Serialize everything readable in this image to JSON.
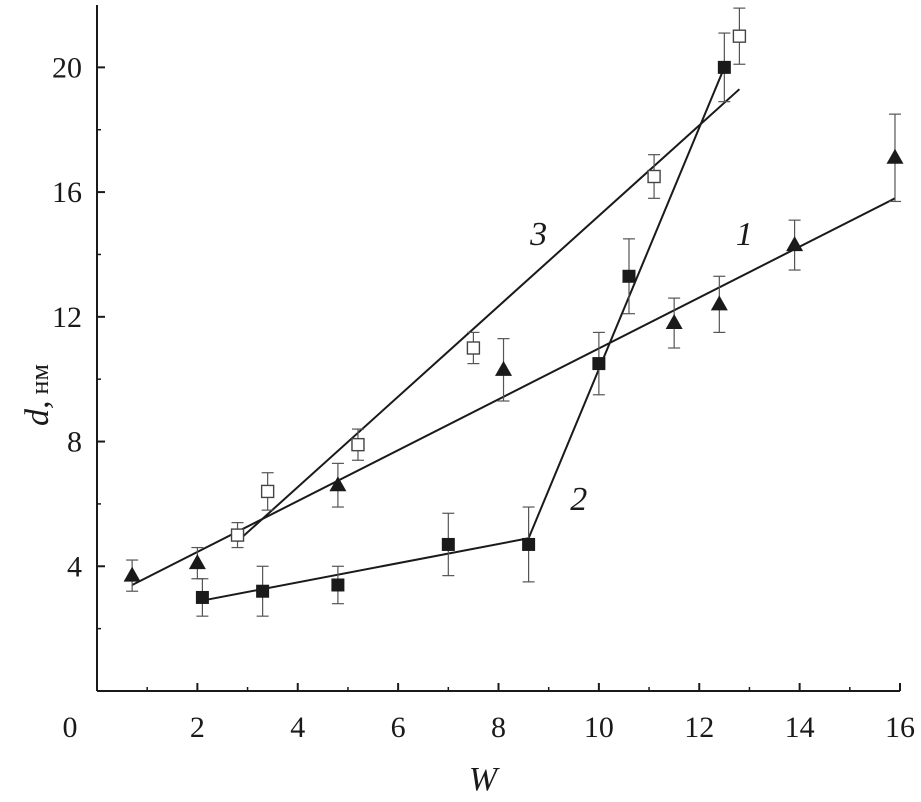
{
  "chart_data": {
    "type": "scatter",
    "xlabel": "W",
    "ylabel": "d,",
    "ylabel_unit": "нм",
    "xlim": [
      0,
      16
    ],
    "ylim": [
      0,
      22
    ],
    "x_ticks": [
      0,
      2,
      4,
      6,
      8,
      10,
      12,
      14,
      16
    ],
    "y_ticks": [
      4,
      8,
      12,
      16,
      20
    ],
    "grid": false,
    "series": [
      {
        "label": "1",
        "marker": "filled-triangle",
        "points": [
          {
            "x": 0.7,
            "y": 3.7,
            "err": 0.5
          },
          {
            "x": 2.0,
            "y": 4.1,
            "err": 0.5
          },
          {
            "x": 4.8,
            "y": 6.6,
            "err": 0.7
          },
          {
            "x": 8.1,
            "y": 10.3,
            "err": 1.0
          },
          {
            "x": 11.5,
            "y": 11.8,
            "err": 0.8
          },
          {
            "x": 12.4,
            "y": 12.4,
            "err": 0.9
          },
          {
            "x": 13.9,
            "y": 14.3,
            "err": 0.8
          },
          {
            "x": 15.9,
            "y": 17.1,
            "err": 1.4
          }
        ],
        "fit": [
          [
            0.7,
            3.4
          ],
          [
            15.9,
            15.8
          ]
        ]
      },
      {
        "label": "2",
        "marker": "filled-square",
        "points": [
          {
            "x": 2.1,
            "y": 3.0,
            "err": 0.6
          },
          {
            "x": 3.3,
            "y": 3.2,
            "err": 0.8
          },
          {
            "x": 4.8,
            "y": 3.4,
            "err": 0.6
          },
          {
            "x": 7.0,
            "y": 4.7,
            "err": 1.0
          },
          {
            "x": 8.6,
            "y": 4.7,
            "err": 1.2
          },
          {
            "x": 10.0,
            "y": 10.5,
            "err": 1.0
          },
          {
            "x": 10.6,
            "y": 13.3,
            "err": 1.2
          },
          {
            "x": 12.5,
            "y": 20.0,
            "err": 1.1
          }
        ],
        "fit": [
          [
            2.1,
            2.9
          ],
          [
            8.6,
            4.9
          ],
          [
            12.5,
            20.0
          ]
        ]
      },
      {
        "label": "3",
        "marker": "open-square",
        "points": [
          {
            "x": 2.8,
            "y": 5.0,
            "err": 0.4
          },
          {
            "x": 3.4,
            "y": 6.4,
            "err": 0.6
          },
          {
            "x": 5.2,
            "y": 7.9,
            "err": 0.5
          },
          {
            "x": 7.5,
            "y": 11.0,
            "err": 0.5
          },
          {
            "x": 11.1,
            "y": 16.5,
            "err": 0.7
          },
          {
            "x": 12.8,
            "y": 21.0,
            "err": 0.9
          }
        ],
        "fit": [
          [
            2.8,
            4.8
          ],
          [
            12.8,
            19.3
          ]
        ]
      }
    ],
    "curve_labels": [
      {
        "text": "1",
        "x": 12.9,
        "y": 14.3
      },
      {
        "text": "2",
        "x": 9.6,
        "y": 5.8
      },
      {
        "text": "3",
        "x": 8.8,
        "y": 14.3
      }
    ]
  }
}
